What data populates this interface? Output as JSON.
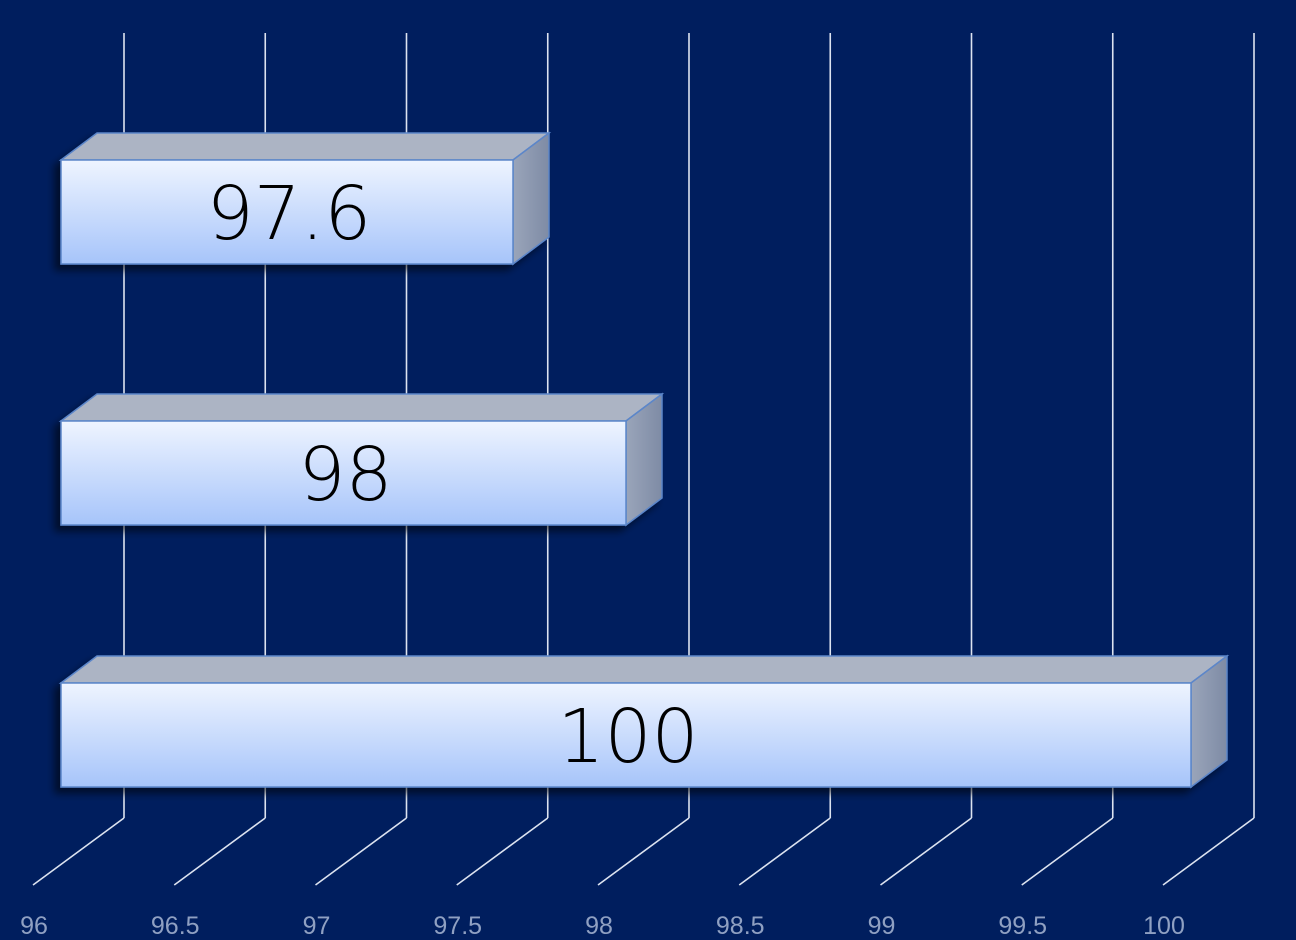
{
  "chart_data": {
    "type": "bar",
    "orientation": "horizontal",
    "style": "3d",
    "title": "",
    "xlabel": "",
    "ylabel": "",
    "xlim": [
      96,
      100
    ],
    "x_ticks": [
      "96",
      "96.5",
      "97",
      "97.5",
      "98",
      "98.5",
      "99",
      "99.5",
      "100"
    ],
    "bars": [
      {
        "value": 97.6,
        "label": "97.6"
      },
      {
        "value": 98,
        "label": "98"
      },
      {
        "value": 100,
        "label": "100"
      }
    ],
    "grid": true,
    "legend": "none"
  },
  "colors": {
    "background": "#001E5E",
    "gridline": "#DCE3F0",
    "tick_label": "#8FA0C2",
    "bar_front_top": "#E9F1FF",
    "bar_front_bottom": "#A6C4FA",
    "bar_top_face": "#ACB4C4",
    "bar_side_face": "#8A96AE",
    "bar_edge": "#5B86C9"
  }
}
